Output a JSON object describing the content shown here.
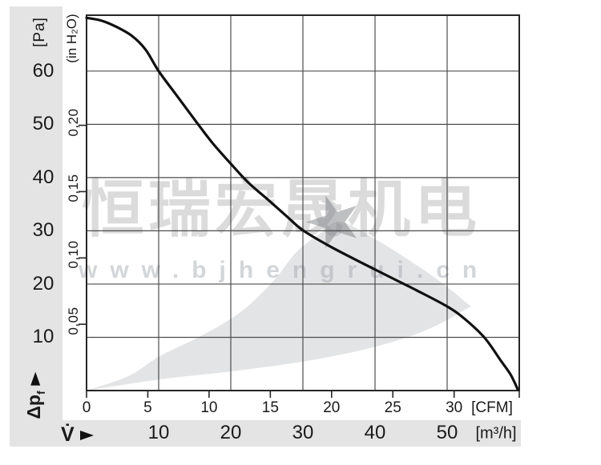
{
  "watermark": {
    "text": "恒瑞宏晟机电",
    "url": "www.bjhengrui.cn",
    "star_icon": "★"
  },
  "axes": {
    "pressure_pa": {
      "unit": "[Pa]",
      "ticks": [
        60,
        50,
        40,
        30,
        20,
        10
      ]
    },
    "pressure_inh2o": {
      "unit": "(in H₂O)",
      "ticks": [
        {
          "label": "0,20",
          "value": 0.2
        },
        {
          "label": "0,15",
          "value": 0.15
        },
        {
          "label": "0,10",
          "value": 0.1
        },
        {
          "label": "0,05",
          "value": 0.05
        }
      ]
    },
    "flow_cfm": {
      "unit": "[CFM]",
      "ticks": [
        0,
        5,
        10,
        15,
        20,
        25,
        30
      ]
    },
    "flow_m3h": {
      "unit": "[m³/h]",
      "ticks": [
        10,
        20,
        30,
        40,
        50
      ]
    },
    "flow_symbol": "V̇",
    "pressure_symbol": "Δp",
    "pressure_symbol_sub": "f"
  },
  "colors": {
    "band": "#e4e4e5",
    "region": "#e3e4e5",
    "grid": "#4d4d4d",
    "border": "#262626",
    "curve": "#111111",
    "text": "#1a1a1a"
  },
  "chart_data": {
    "type": "line",
    "title": "Fan static pressure vs. airflow characteristic curve",
    "xlabel": "V̇ [m³/h] / [CFM]",
    "ylabel": "Δpf [Pa] / (in H₂O)",
    "x_unit": "m³/h",
    "y_unit": "Pa",
    "x_range": [
      0,
      60
    ],
    "y_range": [
      0,
      70.5
    ],
    "x_secondary_unit": "CFM",
    "x_secondary_range": [
      0,
      35.3
    ],
    "grid": true,
    "fan_curve": [
      [
        0,
        70
      ],
      [
        2,
        69.5
      ],
      [
        4,
        68.4
      ],
      [
        6.3,
        66.6
      ],
      [
        8.2,
        64
      ],
      [
        10,
        60
      ],
      [
        12.4,
        55.6
      ],
      [
        15.2,
        50.5
      ],
      [
        17.4,
        46.6
      ],
      [
        20,
        42.6
      ],
      [
        22.4,
        39.1
      ],
      [
        25.2,
        35.8
      ],
      [
        27.7,
        32.8
      ],
      [
        30,
        30.1
      ],
      [
        33.6,
        27.2
      ],
      [
        38,
        24.1
      ],
      [
        42.4,
        21.1
      ],
      [
        45.8,
        18.8
      ],
      [
        50,
        15.8
      ],
      [
        52.4,
        13.5
      ],
      [
        55.2,
        9.9
      ],
      [
        57.4,
        5.7
      ],
      [
        58.8,
        3
      ],
      [
        59.8,
        0.2
      ]
    ],
    "operating_range": {
      "lower": [
        [
          0,
          0
        ],
        [
          10.2,
          2.1
        ],
        [
          21.3,
          3.8
        ],
        [
          32.4,
          6
        ],
        [
          41.3,
          8.7
        ],
        [
          48,
          11.9
        ],
        [
          53.3,
          15.8
        ]
      ],
      "upper": [
        [
          0,
          0
        ],
        [
          5.8,
          2.7
        ],
        [
          10.2,
          6.5
        ],
        [
          15.8,
          10.2
        ],
        [
          21.3,
          14.7
        ],
        [
          25.8,
          20.4
        ],
        [
          29.1,
          26
        ],
        [
          32.4,
          29.5
        ],
        [
          35.2,
          31.7
        ],
        [
          40.2,
          28.3
        ],
        [
          44.7,
          24.5
        ],
        [
          49.1,
          20.4
        ],
        [
          53.3,
          15.8
        ]
      ]
    }
  }
}
